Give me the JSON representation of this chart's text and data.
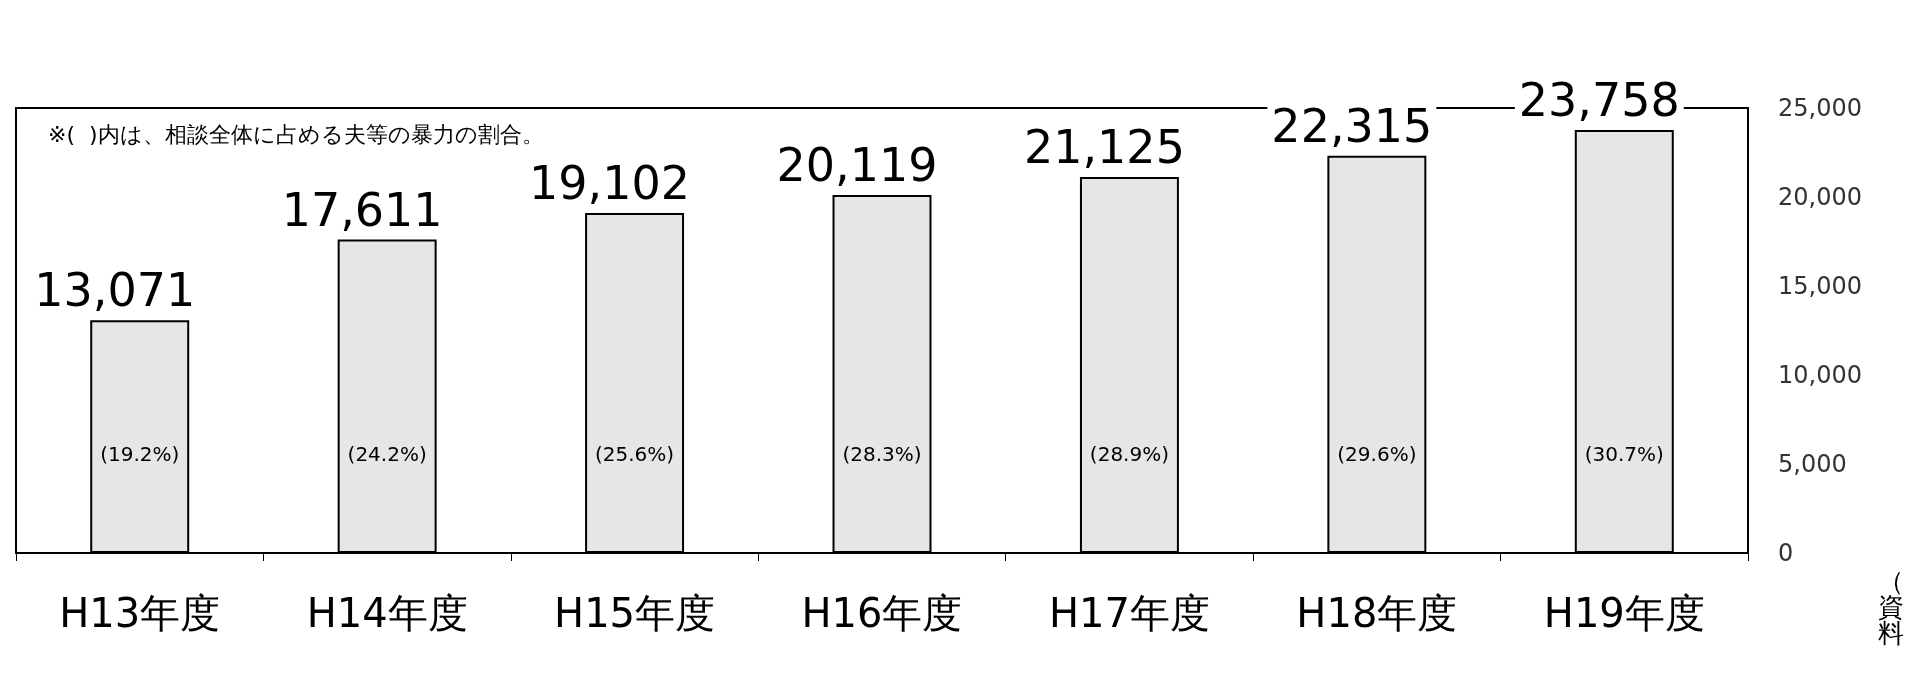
{
  "chart_data": {
    "type": "bar",
    "categories": [
      "H13年度",
      "H14年度",
      "H15年度",
      "H16年度",
      "H17年度",
      "H18年度",
      "H19年度"
    ],
    "values": [
      13071,
      17611,
      19102,
      20119,
      21125,
      22315,
      23758
    ],
    "value_labels": [
      "13,071",
      "17,611",
      "19,102",
      "20,119",
      "21,125",
      "22,315",
      "23,758"
    ],
    "color": "#e6e6e6",
    "grid": false,
    "ylim": [
      0,
      25000
    ],
    "yticks": [
      0,
      {
        "value": 5000,
        "label": "5,000"
      },
      {
        "value": 10000,
        "label": "10,000"
      },
      {
        "value": 15000,
        "label": "15,000"
      },
      {
        "value": 20000,
        "label": "20,000"
      },
      {
        "value": 25000,
        "label": "25,000"
      }
    ],
    "annotations": [
      "※(  )内は、相談全体に占める夫等の暴力の割合。",
      "(19.2%)",
      "(24.2%)",
      "(25.6%)",
      "(28.3%)",
      "(28.9%)",
      "(29.6%)",
      "(30.7%)",
      "（資料"
    ]
  }
}
